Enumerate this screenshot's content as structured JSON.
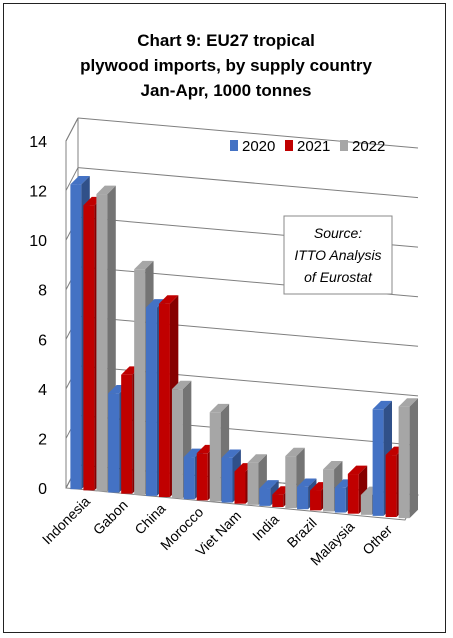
{
  "chart_data": {
    "type": "bar",
    "title_lines": [
      "Chart 9: EU27 tropical",
      "plywood imports, by supply country",
      "Jan-Apr, 1000 tonnes"
    ],
    "categories": [
      "Indonesia",
      "Gabon",
      "China",
      "Morocco",
      "Viet Nam",
      "India",
      "Brazil",
      "Malaysia",
      "Other"
    ],
    "series": [
      {
        "name": "2020",
        "color": "#4472C4",
        "values": [
          12.3,
          4.0,
          7.6,
          1.7,
          1.8,
          0.7,
          0.9,
          1.0,
          4.3
        ]
      },
      {
        "name": "2021",
        "color": "#C00000",
        "values": [
          11.5,
          4.8,
          7.8,
          1.9,
          1.3,
          0.5,
          0.8,
          1.6,
          2.5
        ]
      },
      {
        "name": "2022",
        "color": "#A6A6A6",
        "values": [
          12.0,
          9.1,
          4.4,
          3.6,
          1.7,
          2.1,
          1.7,
          0.8,
          4.5
        ]
      }
    ],
    "ylim": [
      0,
      14
    ],
    "yticks": [
      0,
      2,
      4,
      6,
      8,
      10,
      12,
      14
    ],
    "grid": true,
    "legend_position": "top-right",
    "annotation_lines": [
      "Source:",
      "ITTO Analysis",
      "of Eurostat"
    ]
  }
}
